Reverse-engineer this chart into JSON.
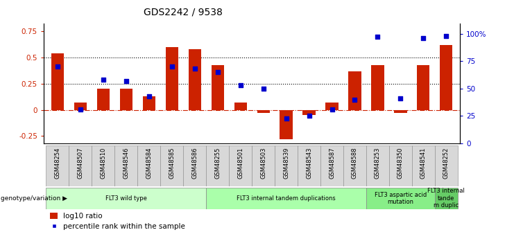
{
  "title": "GDS2242 / 9538",
  "samples": [
    "GSM48254",
    "GSM48507",
    "GSM48510",
    "GSM48546",
    "GSM48584",
    "GSM48585",
    "GSM48586",
    "GSM48255",
    "GSM48501",
    "GSM48503",
    "GSM48539",
    "GSM48543",
    "GSM48587",
    "GSM48588",
    "GSM48253",
    "GSM48350",
    "GSM48541",
    "GSM48252"
  ],
  "log10_ratio": [
    0.54,
    0.07,
    0.2,
    0.2,
    0.13,
    0.6,
    0.58,
    0.43,
    0.07,
    -0.03,
    -0.28,
    -0.05,
    0.07,
    0.37,
    0.43,
    -0.03,
    0.43,
    0.62
  ],
  "percentile_rank": [
    70,
    31,
    58,
    57,
    43,
    70,
    68,
    65,
    53,
    50,
    23,
    25,
    31,
    40,
    97,
    41,
    96,
    98
  ],
  "bar_color": "#cc2200",
  "dot_color": "#0000cc",
  "ylim_left": [
    -0.32,
    0.82
  ],
  "ylim_right": [
    0,
    109
  ],
  "hline_dotted": [
    0.25,
    0.5
  ],
  "group_ranges": [
    [
      0,
      7
    ],
    [
      7,
      14
    ],
    [
      14,
      17
    ],
    [
      17,
      18
    ]
  ],
  "group_labels": [
    "FLT3 wild type",
    "FLT3 internal tandem duplications",
    "FLT3 aspartic acid\nmutation",
    "FLT3 internal\ntande\nm duplic"
  ],
  "group_colors": [
    "#ccffcc",
    "#aaffaa",
    "#88ee88",
    "#66cc66"
  ]
}
